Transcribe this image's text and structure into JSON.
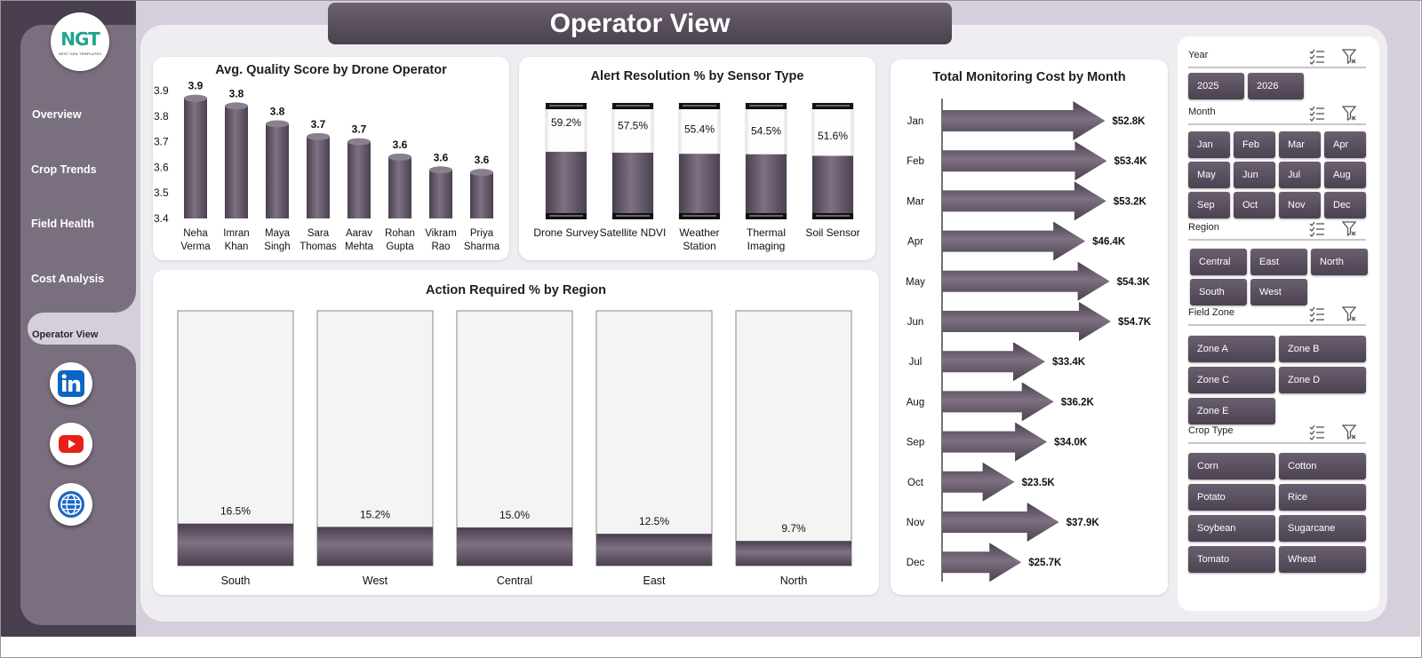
{
  "title": "Operator View",
  "logo": {
    "text_main": "NGT",
    "tagline": "NEXT GEN TEMPLATES"
  },
  "nav": {
    "items": [
      "Overview",
      "Crop Trends",
      "Field Health",
      "Cost Analysis"
    ],
    "active": "Operator View"
  },
  "social": [
    "linkedin-icon",
    "youtube-icon",
    "web-icon"
  ],
  "quality_chart": {
    "title": "Avg. Quality Score by Drone Operator",
    "type": "bar",
    "y_ticks": [
      "3.9",
      "3.8",
      "3.7",
      "3.6",
      "3.5",
      "3.4"
    ],
    "ylim": [
      3.4,
      3.9
    ],
    "operators": [
      {
        "l1": "Neha",
        "l2": "Verma",
        "value": 3.87,
        "label": "3.9"
      },
      {
        "l1": "Imran",
        "l2": "Khan",
        "value": 3.84,
        "label": "3.8"
      },
      {
        "l1": "Maya",
        "l2": "Singh",
        "value": 3.77,
        "label": "3.8"
      },
      {
        "l1": "Sara",
        "l2": "Thomas",
        "value": 3.72,
        "label": "3.7"
      },
      {
        "l1": "Aarav",
        "l2": "Mehta",
        "value": 3.7,
        "label": "3.7"
      },
      {
        "l1": "Rohan",
        "l2": "Gupta",
        "value": 3.64,
        "label": "3.6"
      },
      {
        "l1": "Vikram",
        "l2": "Rao",
        "value": 3.59,
        "label": "3.6"
      },
      {
        "l1": "Priya",
        "l2": "Sharma",
        "value": 3.58,
        "label": "3.6"
      }
    ]
  },
  "alert_chart": {
    "title": "Alert Resolution  % by Sensor Type",
    "type": "bar",
    "sensors": [
      {
        "l1": "Drone Survey",
        "l2": "",
        "value": 59.2,
        "label": "59.2%"
      },
      {
        "l1": "Satellite NDVI",
        "l2": "",
        "value": 57.5,
        "label": "57.5%"
      },
      {
        "l1": "Weather",
        "l2": "Station",
        "value": 55.4,
        "label": "55.4%"
      },
      {
        "l1": "Thermal",
        "l2": "Imaging",
        "value": 54.5,
        "label": "54.5%"
      },
      {
        "l1": "Soil Sensor",
        "l2": "",
        "value": 51.6,
        "label": "51.6%"
      }
    ]
  },
  "action_chart": {
    "title": "Action Required % by Region",
    "type": "bar",
    "regions": [
      {
        "name": "South",
        "value": 16.5,
        "label": "16.5%"
      },
      {
        "name": "West",
        "value": 15.2,
        "label": "15.2%"
      },
      {
        "name": "Central",
        "value": 15.0,
        "label": "15.0%"
      },
      {
        "name": "East",
        "value": 12.5,
        "label": "12.5%"
      },
      {
        "name": "North",
        "value": 9.7,
        "label": "9.7%"
      }
    ]
  },
  "cost_chart": {
    "title": "Total Monitoring Cost by Month",
    "type": "bar",
    "months": [
      {
        "m": "Jan",
        "value": 52.8,
        "label": "$52.8K"
      },
      {
        "m": "Feb",
        "value": 53.4,
        "label": "$53.4K"
      },
      {
        "m": "Mar",
        "value": 53.2,
        "label": "$53.2K"
      },
      {
        "m": "Apr",
        "value": 46.4,
        "label": "$46.4K"
      },
      {
        "m": "May",
        "value": 54.3,
        "label": "$54.3K"
      },
      {
        "m": "Jun",
        "value": 54.7,
        "label": "$54.7K"
      },
      {
        "m": "Jul",
        "value": 33.4,
        "label": "$33.4K"
      },
      {
        "m": "Aug",
        "value": 36.2,
        "label": "$36.2K"
      },
      {
        "m": "Sep",
        "value": 34.0,
        "label": "$34.0K"
      },
      {
        "m": "Oct",
        "value": 23.5,
        "label": "$23.5K"
      },
      {
        "m": "Nov",
        "value": 37.9,
        "label": "$37.9K"
      },
      {
        "m": "Dec",
        "value": 25.7,
        "label": "$25.7K"
      }
    ]
  },
  "chart_data": [
    {
      "type": "bar",
      "title": "Avg. Quality Score by Drone Operator",
      "categories": [
        "Neha Verma",
        "Imran Khan",
        "Maya Singh",
        "Sara Thomas",
        "Aarav Mehta",
        "Rohan Gupta",
        "Vikram Rao",
        "Priya Sharma"
      ],
      "values": [
        3.87,
        3.84,
        3.77,
        3.72,
        3.7,
        3.64,
        3.59,
        3.58
      ],
      "ylim": [
        3.4,
        3.9
      ]
    },
    {
      "type": "bar",
      "title": "Alert Resolution  % by Sensor Type",
      "categories": [
        "Drone Survey",
        "Satellite NDVI",
        "Weather Station",
        "Thermal Imaging",
        "Soil Sensor"
      ],
      "values": [
        59.2,
        57.5,
        55.4,
        54.5,
        51.6
      ]
    },
    {
      "type": "bar",
      "title": "Action Required % by Region",
      "categories": [
        "South",
        "West",
        "Central",
        "East",
        "North"
      ],
      "values": [
        16.5,
        15.2,
        15.0,
        12.5,
        9.7
      ]
    },
    {
      "type": "bar",
      "title": "Total Monitoring Cost by Month",
      "categories": [
        "Jan",
        "Feb",
        "Mar",
        "Apr",
        "May",
        "Jun",
        "Jul",
        "Aug",
        "Sep",
        "Oct",
        "Nov",
        "Dec"
      ],
      "values": [
        52.8,
        53.4,
        53.2,
        46.4,
        54.3,
        54.7,
        33.4,
        36.2,
        34.0,
        23.5,
        37.9,
        25.7
      ]
    }
  ],
  "filters": {
    "year": {
      "title": "Year",
      "options": [
        "2025",
        "2026"
      ]
    },
    "month": {
      "title": "Month",
      "options": [
        "Jan",
        "Feb",
        "Mar",
        "Apr",
        "May",
        "Jun",
        "Jul",
        "Aug",
        "Sep",
        "Oct",
        "Nov",
        "Dec"
      ]
    },
    "region": {
      "title": "Region",
      "options": [
        "Central",
        "East",
        "North",
        "South",
        "West"
      ]
    },
    "zone": {
      "title": "Field Zone",
      "options": [
        "Zone A",
        "Zone B",
        "Zone C",
        "Zone D",
        "Zone E"
      ]
    },
    "crop": {
      "title": "Crop Type",
      "options": [
        "Corn",
        "Cotton",
        "Potato",
        "Rice",
        "Soybean",
        "Sugarcane",
        "Tomato",
        "Wheat"
      ]
    }
  },
  "colors": {
    "accent": "#4a3f4f",
    "sidebar": "#7a6f7f",
    "panel": "#d5cfdb"
  }
}
